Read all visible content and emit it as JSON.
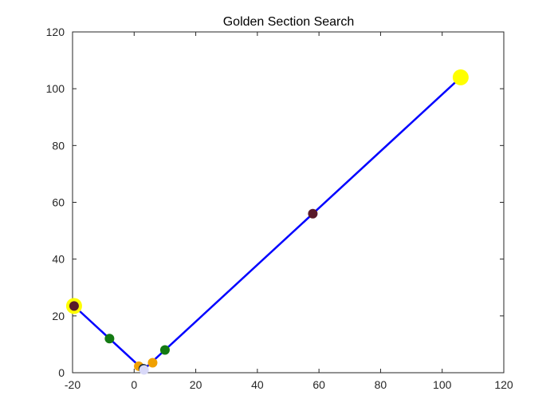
{
  "chart_data": {
    "type": "line",
    "title": "Golden Section Search",
    "xlabel": "",
    "ylabel": "",
    "xlim": [
      -20,
      120
    ],
    "ylim": [
      0,
      120
    ],
    "x_ticks": [
      -20,
      0,
      20,
      40,
      60,
      80,
      100,
      120
    ],
    "y_ticks": [
      0,
      20,
      40,
      60,
      80,
      100,
      120
    ],
    "grid": false,
    "line": {
      "color": "#0000ff",
      "points": [
        {
          "x": -19.5,
          "y": 23.5
        },
        {
          "x": 3.0,
          "y": 1.0
        },
        {
          "x": 106.0,
          "y": 104.0
        }
      ]
    },
    "markers": [
      {
        "x": -19.5,
        "y": 23.5,
        "color": "#ffff00",
        "size": "large"
      },
      {
        "x": 106.0,
        "y": 104.0,
        "color": "#ffff00",
        "size": "large"
      },
      {
        "x": -19.5,
        "y": 23.5,
        "color": "#5a1a2a",
        "size": "medium"
      },
      {
        "x": 58.0,
        "y": 56.0,
        "color": "#5a1a2a",
        "size": "medium"
      },
      {
        "x": -8.0,
        "y": 12.0,
        "color": "#137a13",
        "size": "medium"
      },
      {
        "x": 10.0,
        "y": 8.0,
        "color": "#137a13",
        "size": "medium"
      },
      {
        "x": 1.5,
        "y": 2.3,
        "color": "#f0a000",
        "size": "medium"
      },
      {
        "x": 6.0,
        "y": 3.5,
        "color": "#f0a000",
        "size": "medium"
      },
      {
        "x": 3.0,
        "y": 1.4,
        "color": "#1a2a3a",
        "size": "medium"
      },
      {
        "x": 3.2,
        "y": 1.0,
        "color": "#d8d8f8",
        "size": "medium"
      }
    ]
  }
}
